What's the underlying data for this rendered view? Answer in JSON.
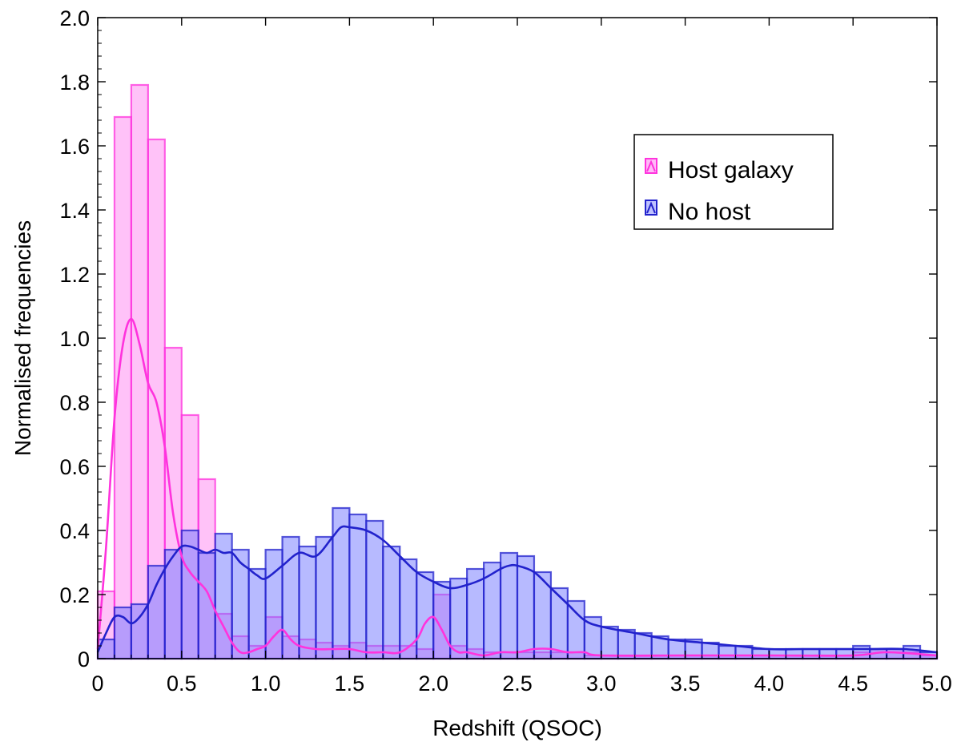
{
  "chart_data": {
    "type": "bar",
    "xlabel": "Redshift (QSOC)",
    "ylabel": "Normalised frequencies",
    "xlim": [
      0,
      5.0
    ],
    "ylim": [
      0,
      2.0
    ],
    "xticks": [
      "0",
      "0.5",
      "1.0",
      "1.5",
      "2.0",
      "2.5",
      "3.0",
      "3.5",
      "4.0",
      "4.5",
      "5.0"
    ],
    "yticks": [
      "0",
      "0.2",
      "0.4",
      "0.6",
      "0.8",
      "1.0",
      "1.2",
      "1.4",
      "1.6",
      "1.8",
      "2.0"
    ],
    "bin_width": 0.1,
    "bin_starts": [
      0.0,
      0.1,
      0.2,
      0.3,
      0.4,
      0.5,
      0.6,
      0.7,
      0.8,
      0.9,
      1.0,
      1.1,
      1.2,
      1.3,
      1.4,
      1.5,
      1.6,
      1.7,
      1.8,
      1.9,
      2.0,
      2.1,
      2.2,
      2.3,
      2.4,
      2.5,
      2.6,
      2.7,
      2.8,
      2.9,
      3.0,
      3.1,
      3.2,
      3.3,
      3.4,
      3.5,
      3.6,
      3.7,
      3.8,
      3.9,
      4.0,
      4.1,
      4.2,
      4.3,
      4.4,
      4.5,
      4.6,
      4.7,
      4.8,
      4.9
    ],
    "legend_position": "top-right",
    "series": [
      {
        "name": "Host galaxy",
        "color": "#ff33dd",
        "fill": "#ff66ee",
        "values": [
          0.21,
          1.69,
          1.79,
          1.62,
          0.97,
          0.76,
          0.56,
          0.14,
          0.07,
          0.04,
          0.13,
          0.07,
          0.06,
          0.05,
          0.04,
          0.05,
          0.04,
          0.04,
          0.04,
          0.03,
          0.2,
          0.04,
          0.03,
          0.02,
          0.02,
          0.02,
          0.02,
          0.02,
          0.02,
          0.01,
          0.01,
          0.01,
          0.01,
          0.01,
          0.01,
          0.01,
          0.01,
          0.01,
          0.01,
          0.01,
          0.01,
          0.01,
          0.01,
          0.01,
          0.01,
          0.02,
          0.03,
          0.03,
          0.02,
          0.01
        ],
        "kde_x": [
          0.0,
          0.05,
          0.1,
          0.15,
          0.2,
          0.25,
          0.3,
          0.35,
          0.4,
          0.45,
          0.5,
          0.55,
          0.6,
          0.65,
          0.7,
          0.75,
          0.8,
          0.85,
          0.9,
          0.95,
          1.0,
          1.05,
          1.1,
          1.15,
          1.2,
          1.3,
          1.4,
          1.5,
          1.6,
          1.7,
          1.8,
          1.9,
          1.95,
          2.0,
          2.05,
          2.1,
          2.15,
          2.2,
          2.3,
          2.4,
          2.5,
          2.6,
          2.7,
          2.8,
          2.9,
          3.0,
          3.5,
          4.0,
          4.5,
          4.7,
          5.0
        ],
        "kde_y": [
          0.03,
          0.35,
          0.75,
          0.98,
          1.06,
          0.98,
          0.86,
          0.8,
          0.66,
          0.45,
          0.32,
          0.27,
          0.24,
          0.21,
          0.15,
          0.1,
          0.05,
          0.02,
          0.02,
          0.03,
          0.04,
          0.07,
          0.09,
          0.06,
          0.04,
          0.03,
          0.03,
          0.03,
          0.02,
          0.02,
          0.02,
          0.06,
          0.11,
          0.13,
          0.09,
          0.04,
          0.02,
          0.02,
          0.01,
          0.02,
          0.02,
          0.03,
          0.03,
          0.02,
          0.02,
          0.01,
          0.01,
          0.01,
          0.01,
          0.02,
          0.01
        ]
      },
      {
        "name": "No host",
        "color": "#2222cc",
        "fill": "#6f76ff",
        "values": [
          0.06,
          0.16,
          0.17,
          0.29,
          0.34,
          0.4,
          0.33,
          0.39,
          0.34,
          0.28,
          0.34,
          0.38,
          0.35,
          0.38,
          0.47,
          0.45,
          0.43,
          0.35,
          0.31,
          0.27,
          0.24,
          0.25,
          0.28,
          0.3,
          0.33,
          0.32,
          0.27,
          0.22,
          0.18,
          0.13,
          0.1,
          0.09,
          0.08,
          0.07,
          0.06,
          0.06,
          0.05,
          0.04,
          0.04,
          0.03,
          0.03,
          0.03,
          0.03,
          0.03,
          0.03,
          0.04,
          0.03,
          0.03,
          0.04,
          0.02
        ],
        "kde_x": [
          0.0,
          0.05,
          0.1,
          0.15,
          0.2,
          0.25,
          0.3,
          0.35,
          0.4,
          0.45,
          0.5,
          0.55,
          0.6,
          0.65,
          0.7,
          0.75,
          0.8,
          0.85,
          0.9,
          0.95,
          1.0,
          1.1,
          1.2,
          1.3,
          1.4,
          1.45,
          1.5,
          1.6,
          1.7,
          1.8,
          1.9,
          2.0,
          2.1,
          2.2,
          2.3,
          2.4,
          2.45,
          2.5,
          2.6,
          2.7,
          2.8,
          2.9,
          3.0,
          3.2,
          3.4,
          3.6,
          3.8,
          4.0,
          4.2,
          4.4,
          4.6,
          4.8,
          5.0
        ],
        "kde_y": [
          0.02,
          0.08,
          0.13,
          0.13,
          0.11,
          0.13,
          0.17,
          0.23,
          0.28,
          0.32,
          0.35,
          0.35,
          0.34,
          0.33,
          0.34,
          0.33,
          0.33,
          0.3,
          0.28,
          0.26,
          0.25,
          0.29,
          0.33,
          0.32,
          0.38,
          0.41,
          0.41,
          0.4,
          0.37,
          0.32,
          0.27,
          0.24,
          0.22,
          0.23,
          0.25,
          0.28,
          0.29,
          0.29,
          0.27,
          0.22,
          0.17,
          0.12,
          0.1,
          0.08,
          0.06,
          0.05,
          0.04,
          0.03,
          0.03,
          0.03,
          0.03,
          0.03,
          0.02
        ]
      }
    ]
  }
}
